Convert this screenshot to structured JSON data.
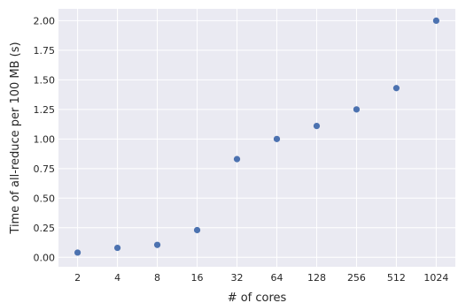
{
  "chart_data": {
    "type": "scatter",
    "title": "",
    "xlabel": "# of cores",
    "ylabel": "Time of all-reduce per 100 MB (s)",
    "x_scale": "log2",
    "x_ticks": [
      "2",
      "4",
      "8",
      "16",
      "32",
      "64",
      "128",
      "256",
      "512",
      "1024"
    ],
    "y_ticks": [
      "0.00",
      "0.25",
      "0.50",
      "0.75",
      "1.00",
      "1.25",
      "1.50",
      "1.75",
      "2.00"
    ],
    "ylim": [
      -0.08,
      2.1
    ],
    "grid": true,
    "points": [
      {
        "x": 2,
        "y": 0.04
      },
      {
        "x": 4,
        "y": 0.08
      },
      {
        "x": 8,
        "y": 0.105
      },
      {
        "x": 16,
        "y": 0.23
      },
      {
        "x": 32,
        "y": 0.83
      },
      {
        "x": 64,
        "y": 1.0
      },
      {
        "x": 128,
        "y": 1.11
      },
      {
        "x": 256,
        "y": 1.25
      },
      {
        "x": 512,
        "y": 1.43
      },
      {
        "x": 1024,
        "y": 2.0
      }
    ],
    "colors": {
      "background": "#EAEAF2",
      "grid": "#FFFFFF",
      "point": "#4C72B0"
    }
  }
}
